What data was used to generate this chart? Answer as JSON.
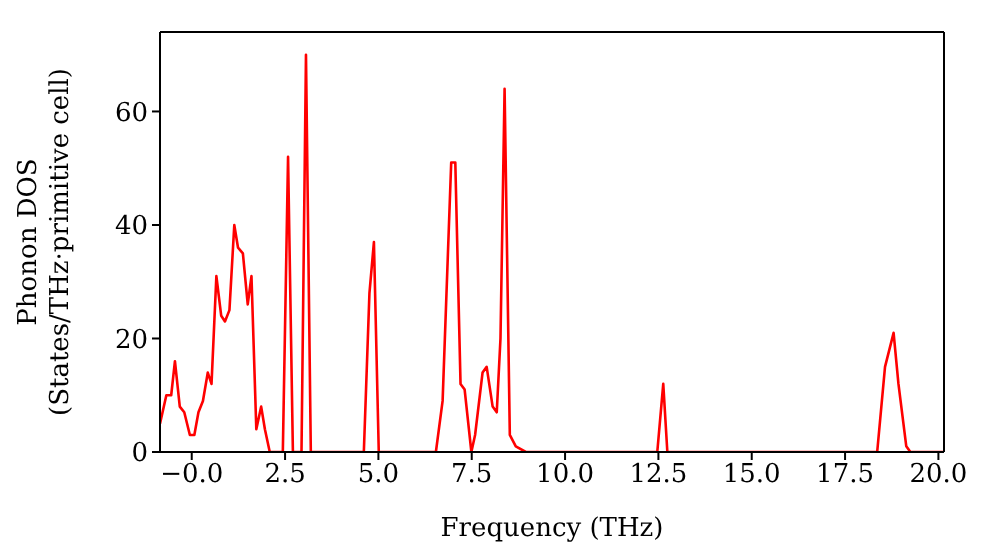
{
  "chart_data": {
    "type": "line",
    "xlabel": "Frequency (THz)",
    "ylabel": "Phonon DOS\n(States/THz·primitive cell)",
    "xlim": [
      -0.85,
      20.15
    ],
    "ylim": [
      0,
      74
    ],
    "xticks": [
      {
        "value": 0,
        "label": "−0.0"
      },
      {
        "value": 2.5,
        "label": "2.5"
      },
      {
        "value": 5,
        "label": "5.0"
      },
      {
        "value": 7.5,
        "label": "7.5"
      },
      {
        "value": 10,
        "label": "10.0"
      },
      {
        "value": 12.5,
        "label": "12.5"
      },
      {
        "value": 15,
        "label": "15.0"
      },
      {
        "value": 17.5,
        "label": "17.5"
      },
      {
        "value": 20,
        "label": "20.0"
      }
    ],
    "yticks": [
      0,
      20,
      40,
      60
    ],
    "marker": "none",
    "line_style": "solid",
    "series": [
      {
        "color": "#ff0000",
        "x": [
          -0.85,
          -0.68,
          -0.55,
          -0.45,
          -0.32,
          -0.2,
          -0.05,
          0.07,
          0.18,
          0.3,
          0.43,
          0.53,
          0.66,
          0.79,
          0.89,
          1.01,
          1.14,
          1.24,
          1.37,
          1.5,
          1.6,
          1.73,
          1.86,
          1.96,
          2.09,
          2.44,
          2.58,
          2.71,
          2.94,
          3.06,
          3.19,
          4.61,
          4.76,
          4.88,
          5.01,
          6.54,
          6.72,
          6.95,
          7.06,
          7.2,
          7.31,
          7.49,
          7.59,
          7.79,
          7.9,
          8.06,
          8.17,
          8.27,
          8.38,
          8.52,
          8.68,
          8.95,
          12.47,
          12.63,
          12.74,
          18.36,
          18.57,
          18.8,
          18.93,
          19.14,
          19.25,
          20.15
        ],
        "values": [
          5,
          10,
          10,
          16,
          8,
          7,
          3,
          3,
          7,
          9,
          14,
          12,
          31,
          24,
          23,
          25,
          40,
          36,
          35,
          26,
          31,
          4,
          8,
          4,
          0,
          0,
          52,
          0,
          0,
          70,
          0,
          0,
          28,
          37,
          0,
          0,
          9,
          51,
          51,
          12,
          11,
          0,
          3,
          14,
          15,
          8,
          7,
          20,
          64,
          3,
          1,
          0,
          0,
          12,
          0,
          0,
          15,
          21,
          12,
          1,
          0,
          0
        ]
      }
    ]
  }
}
